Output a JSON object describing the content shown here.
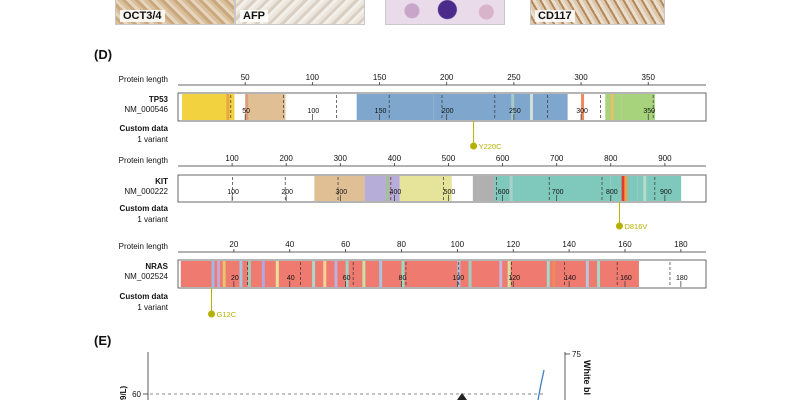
{
  "top_strip": {
    "items": [
      {
        "label": "OCT3/4"
      },
      {
        "label": "AFP"
      },
      {
        "label": ""
      },
      {
        "label": "CD117"
      }
    ]
  },
  "panel_d": {
    "letter": "(D)",
    "tracks": [
      {
        "gene": "TP53",
        "accession": "NM_000546",
        "length_label": "Protein length",
        "custom_label": "Custom data",
        "variant_count_label": "1 variant",
        "variant": "Y220C",
        "variant_pos": 220,
        "top_ticks": [
          50,
          100,
          150,
          200,
          250,
          300,
          350
        ],
        "inside_ticks": [
          50,
          100,
          150,
          200,
          250,
          300,
          350
        ],
        "max": 393
      },
      {
        "gene": "KIT",
        "accession": "NM_000222",
        "length_label": "Protein length",
        "custom_label": "Custom data",
        "variant_count_label": "1 variant",
        "variant": "D816V",
        "variant_pos": 816,
        "top_ticks": [
          100,
          200,
          300,
          400,
          500,
          600,
          700,
          800,
          900
        ],
        "inside_ticks": [
          100,
          200,
          300,
          400,
          500,
          600,
          700,
          800,
          900
        ],
        "max": 976
      },
      {
        "gene": "NRAS",
        "accession": "NM_002524",
        "length_label": "Protein length",
        "custom_label": "Custom data",
        "variant_count_label": "1 variant",
        "variant": "G12C",
        "variant_pos": 12,
        "top_ticks": [
          20,
          40,
          60,
          80,
          100,
          120,
          140,
          160,
          180
        ],
        "inside_ticks": [
          20,
          40,
          60,
          80,
          100,
          120,
          140,
          160,
          180
        ],
        "max": 189
      }
    ]
  },
  "panel_e": {
    "letter": "(E)",
    "left_tick": "60",
    "right_tick": "75",
    "left_axis_label": "9/L)",
    "right_axis_label": "White bl"
  },
  "colors": {
    "variant": "#b5b000",
    "line": "#3d7fc1",
    "yellow": "#f2d23e",
    "tan": "#e0bf95",
    "blue": "#7fa6cc",
    "lavender": "#b6aed8",
    "lightyellow": "#e6e49a",
    "gray": "#b0b0b0",
    "teal": "#7fc9bc",
    "green": "#a6d37c",
    "salmon": "#ee7a70",
    "red": "#e23b2d"
  }
}
